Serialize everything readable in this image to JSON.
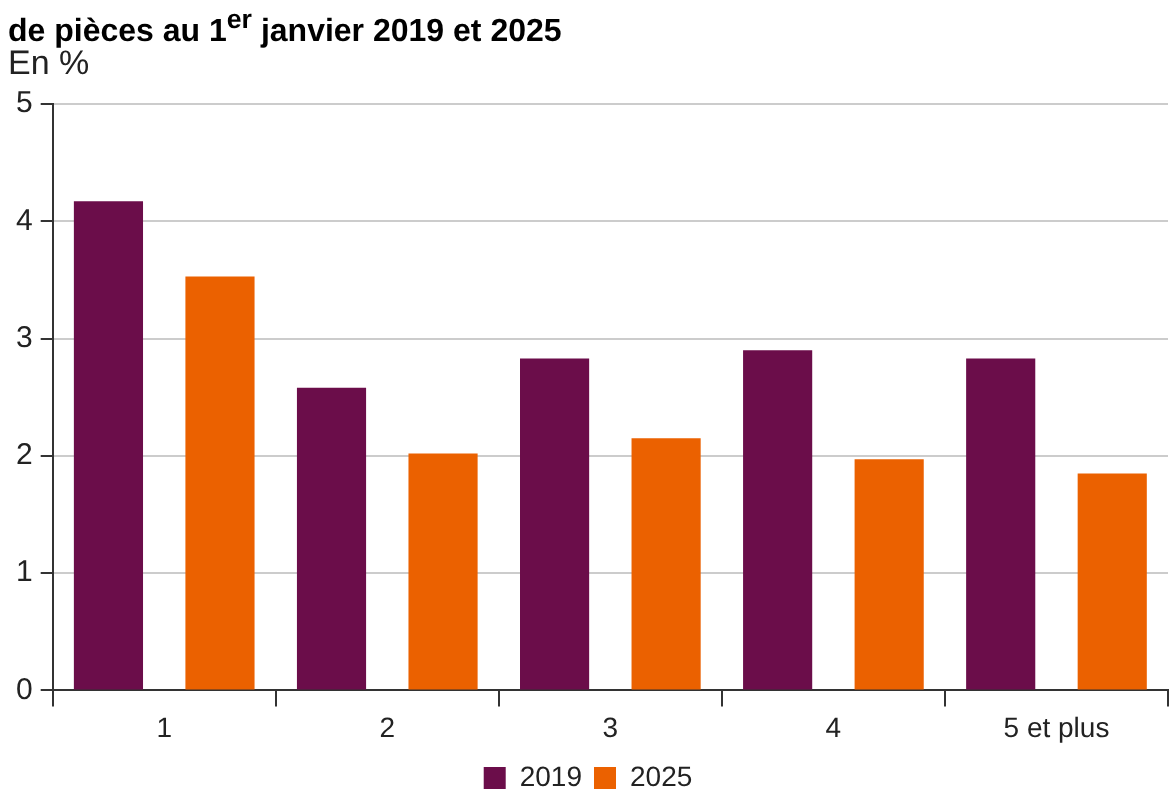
{
  "chart_data": {
    "type": "bar",
    "title": "de pièces au 1$^{er}$ janvier 2019 et 2025",
    "ylabel": "En %",
    "categories": [
      "1",
      "2",
      "3",
      "4",
      "5 et plus"
    ],
    "series": [
      {
        "name": "2019",
        "color": "#6b0d4a",
        "values": [
          4.17,
          2.58,
          2.83,
          2.9,
          2.83
        ]
      },
      {
        "name": "2025",
        "color": "#eb6100",
        "values": [
          3.53,
          2.02,
          2.15,
          1.97,
          1.85
        ]
      }
    ],
    "ylim": [
      0,
      5
    ],
    "yticks": [
      0,
      1,
      2,
      3,
      4,
      5
    ],
    "grid": "y",
    "legend": "bottom"
  }
}
